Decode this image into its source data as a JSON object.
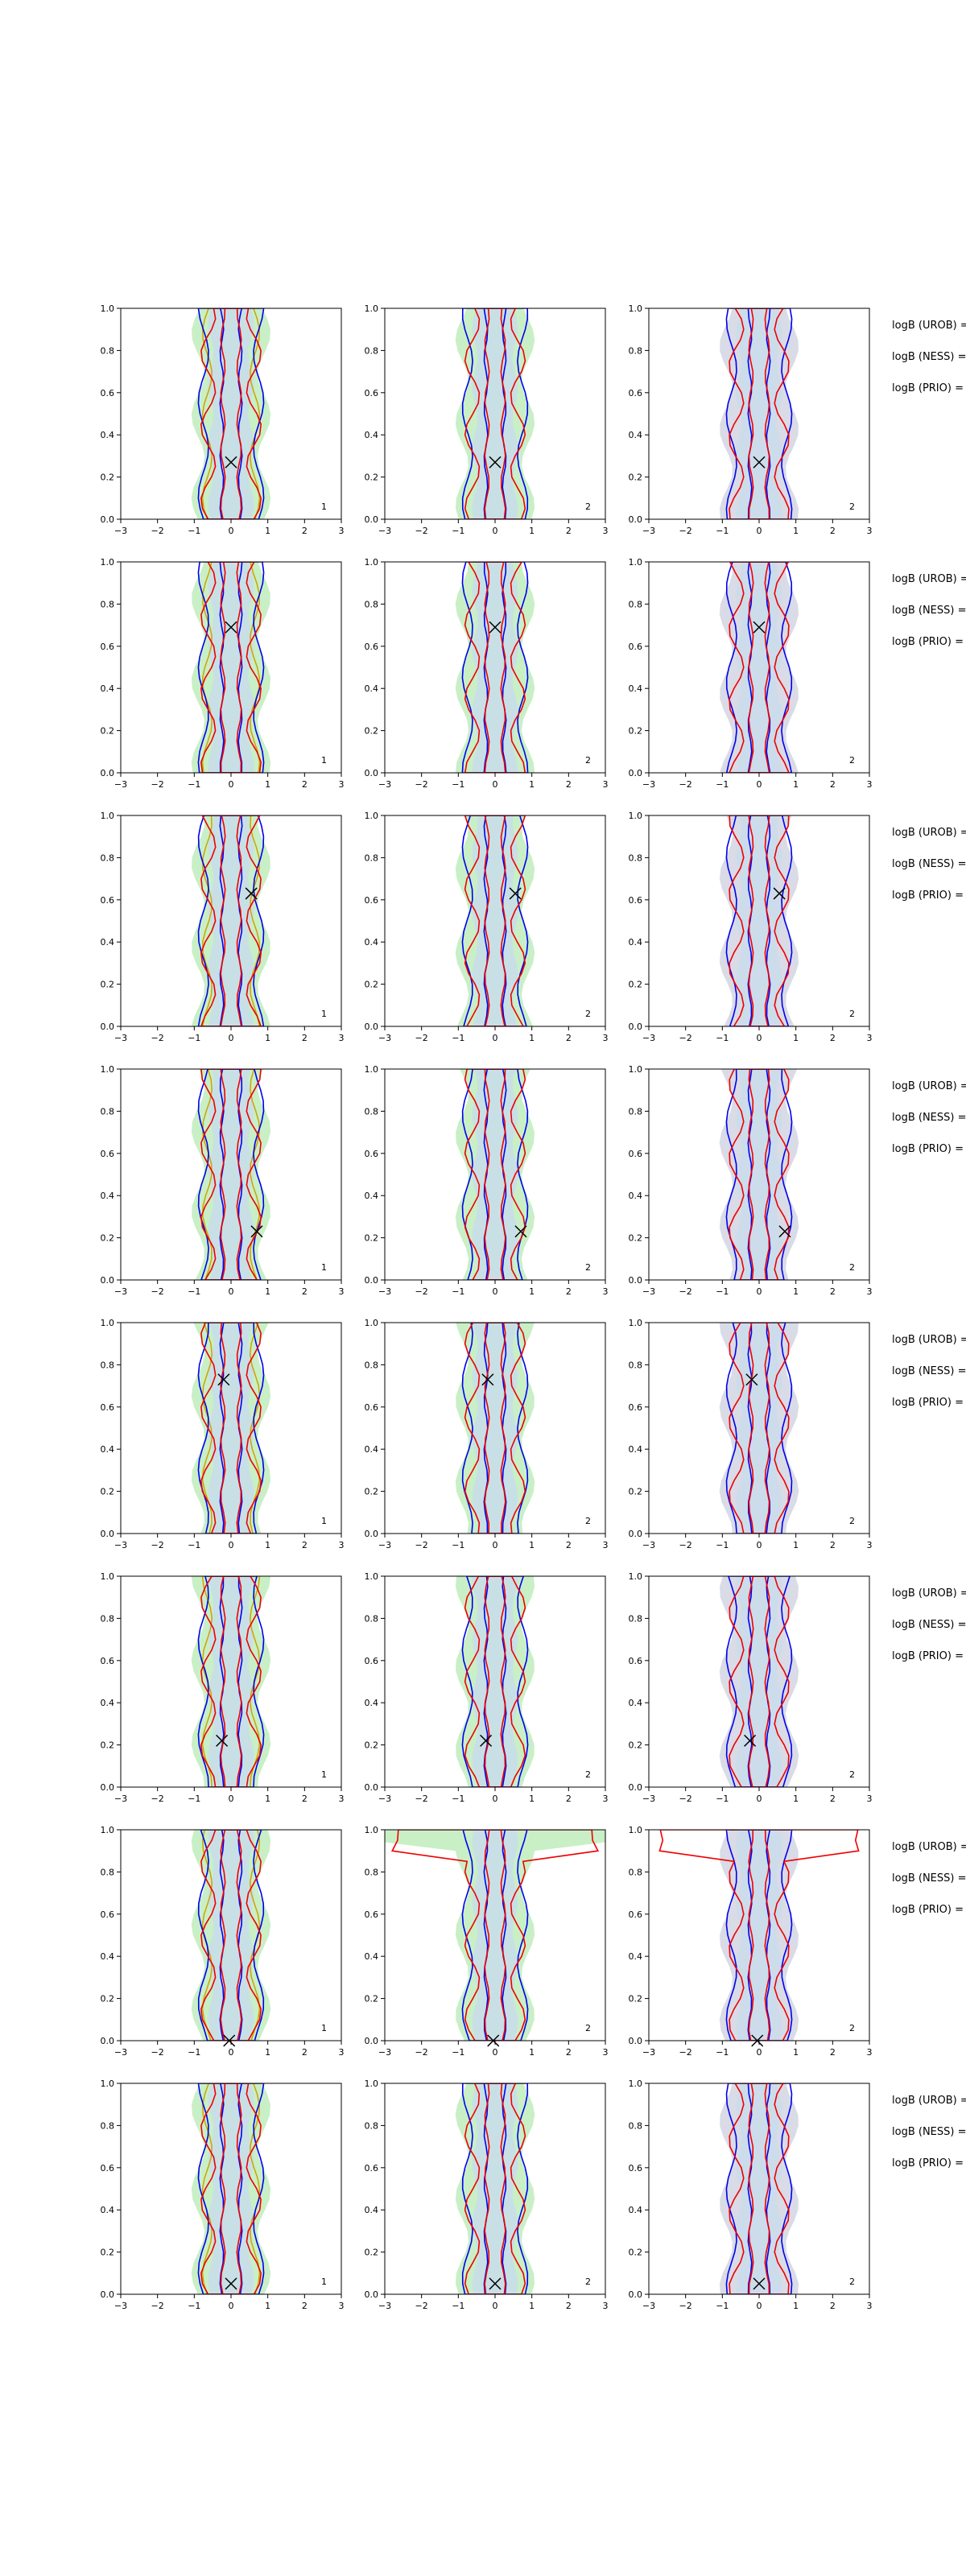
{
  "chart_data": {
    "type": "contour",
    "layout": {
      "rows": 8,
      "cols": 3
    },
    "xlim": [
      -3,
      3
    ],
    "ylim": [
      0,
      1
    ],
    "xticks": [
      "−3",
      "−2",
      "−1",
      "0",
      "1",
      "2",
      "3"
    ],
    "yticks": [
      "0.0",
      "0.2",
      "0.4",
      "0.6",
      "0.8",
      "1.0"
    ],
    "grid": false,
    "panel_ids": [
      "1",
      "2",
      "2"
    ],
    "side_labels": [
      "logB (UROB) =",
      "logB (NESS) =",
      "logB (PRIO) ="
    ],
    "colors": {
      "prior_fill_left": "#c9efc6",
      "prior_fill_mid": "#c9efc6",
      "prior_fill_right": "#d9dbe6",
      "inner_fill": "#c8dcec",
      "posterior_a": "#0000ee",
      "posterior_b": "#ee0000",
      "prior_line": "#cfa300",
      "marker": "#000000"
    },
    "rows": [
      {
        "marker": {
          "x": 0.0,
          "y": 0.27
        }
      },
      {
        "marker": {
          "x": 0.0,
          "y": 0.69
        }
      },
      {
        "marker": {
          "x": 0.55,
          "y": 0.63
        }
      },
      {
        "marker": {
          "x": 0.7,
          "y": 0.23
        }
      },
      {
        "marker": {
          "x": -0.2,
          "y": 0.73
        }
      },
      {
        "marker": {
          "x": -0.25,
          "y": 0.22
        }
      },
      {
        "marker": {
          "x": -0.05,
          "y": 0.0
        }
      },
      {
        "marker": {
          "x": 0.0,
          "y": 0.05
        }
      }
    ]
  }
}
